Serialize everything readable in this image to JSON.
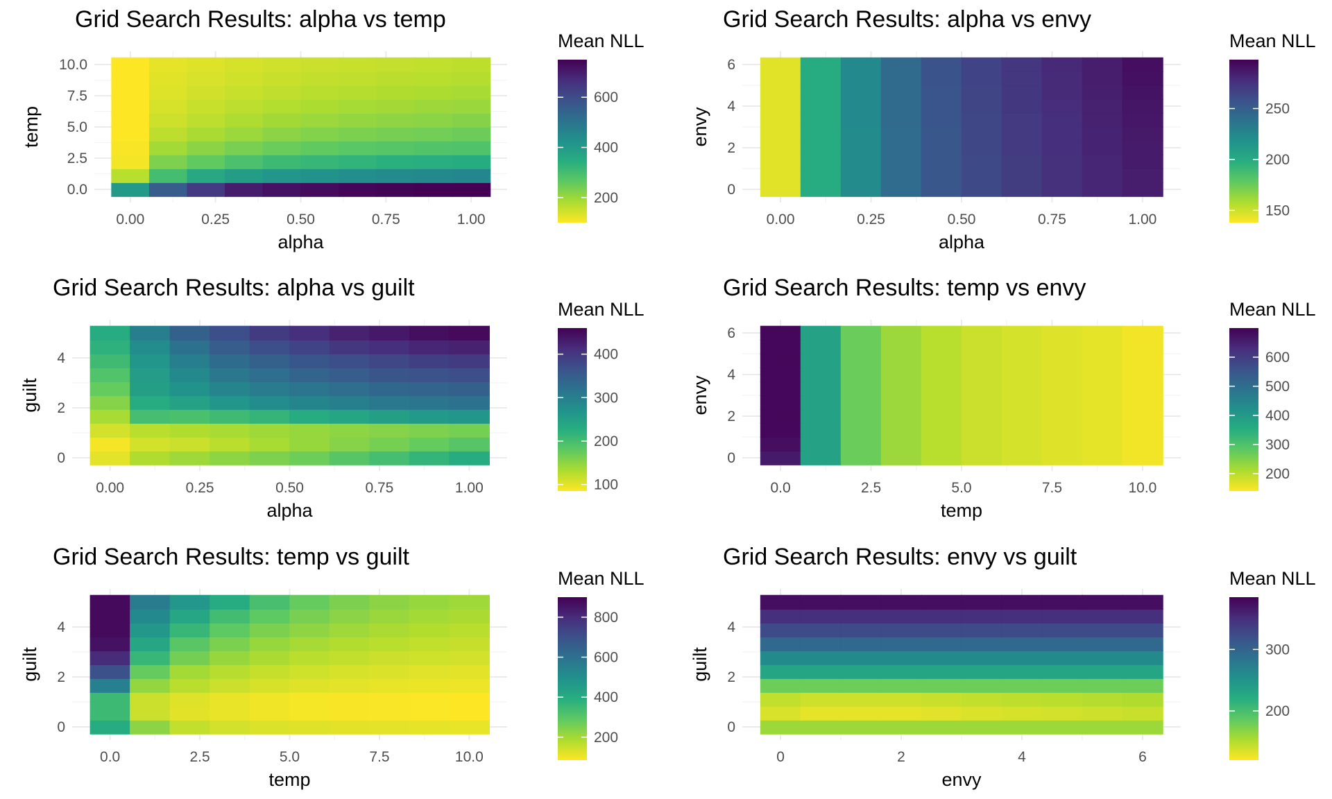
{
  "chart_data": [
    {
      "type": "heatmap",
      "title": "Grid Search Results: alpha vs temp",
      "xlabel": "alpha",
      "ylabel": "temp",
      "xticks": [
        0.0,
        0.25,
        0.5,
        0.75,
        1.0
      ],
      "xtick_labels": [
        "0.00",
        "0.25",
        "0.50",
        "0.75",
        "1.00"
      ],
      "yticks": [
        0.0,
        2.5,
        5.0,
        7.5,
        10.0
      ],
      "ytick_labels": [
        "0.0",
        "2.5",
        "5.0",
        "7.5",
        "10.0"
      ],
      "x": [
        0.0,
        0.1111,
        0.2222,
        0.3333,
        0.4444,
        0.5556,
        0.6667,
        0.7778,
        0.8889,
        1.0
      ],
      "y": [
        0.0,
        1.1111,
        2.2222,
        3.3333,
        4.4444,
        5.5556,
        6.6667,
        7.7778,
        8.8889,
        10.0
      ],
      "z": [
        [
          400,
          560,
          640,
          700,
          720,
          730,
          740,
          745,
          750,
          750
        ],
        [
          170,
          300,
          360,
          390,
          410,
          420,
          430,
          440,
          445,
          450
        ],
        [
          110,
          230,
          260,
          290,
          310,
          320,
          330,
          340,
          345,
          350
        ],
        [
          105,
          190,
          215,
          235,
          250,
          260,
          270,
          275,
          280,
          285
        ],
        [
          100,
          165,
          185,
          200,
          215,
          225,
          232,
          238,
          243,
          248
        ],
        [
          100,
          150,
          165,
          180,
          192,
          200,
          207,
          212,
          217,
          222
        ],
        [
          100,
          140,
          155,
          165,
          175,
          182,
          188,
          193,
          198,
          202
        ],
        [
          100,
          133,
          145,
          155,
          163,
          169,
          174,
          178,
          182,
          186
        ],
        [
          100,
          128,
          138,
          147,
          154,
          159,
          163,
          167,
          170,
          174
        ],
        [
          100,
          124,
          133,
          140,
          146,
          151,
          155,
          158,
          161,
          164
        ]
      ],
      "legend_title": "Mean NLL",
      "legend_ticks": [
        200,
        400,
        600
      ],
      "zlim": [
        100,
        750
      ],
      "colormap": "viridis (reversed: low = yellow, high = dark purple)"
    },
    {
      "type": "heatmap",
      "title": "Grid Search Results: alpha vs envy",
      "xlabel": "alpha",
      "ylabel": "envy",
      "xticks": [
        0.0,
        0.25,
        0.5,
        0.75,
        1.0
      ],
      "xtick_labels": [
        "0.00",
        "0.25",
        "0.50",
        "0.75",
        "1.00"
      ],
      "yticks": [
        0,
        2,
        4,
        6
      ],
      "ytick_labels": [
        "0",
        "2",
        "4",
        "6"
      ],
      "x": [
        0.0,
        0.1111,
        0.2222,
        0.3333,
        0.4444,
        0.5556,
        0.6667,
        0.7778,
        0.8889,
        1.0
      ],
      "y": [
        0.0,
        0.6667,
        1.3333,
        2.0,
        2.6667,
        3.3333,
        4.0,
        4.6667,
        5.3333,
        6.0
      ],
      "z": [
        [
          145,
          200,
          222,
          242,
          255,
          263,
          270,
          276,
          281,
          285
        ],
        [
          145,
          200,
          222,
          242,
          255,
          263,
          270,
          276,
          281,
          285
        ],
        [
          145,
          200,
          222,
          242,
          255,
          263,
          270,
          276,
          281,
          286
        ],
        [
          145,
          200,
          222,
          242,
          255,
          264,
          271,
          277,
          282,
          286
        ],
        [
          145,
          200,
          222,
          242,
          255,
          264,
          271,
          277,
          282,
          287
        ],
        [
          145,
          200,
          223,
          243,
          256,
          264,
          271,
          277,
          283,
          288
        ],
        [
          145,
          200,
          223,
          243,
          256,
          265,
          272,
          278,
          283,
          289
        ],
        [
          145,
          200,
          223,
          243,
          256,
          265,
          272,
          279,
          284,
          290
        ],
        [
          145,
          200,
          223,
          243,
          257,
          266,
          273,
          279,
          285,
          291
        ],
        [
          145,
          200,
          223,
          243,
          257,
          266,
          273,
          280,
          285,
          292
        ]
      ],
      "legend_title": "Mean NLL",
      "legend_ticks": [
        150,
        200,
        250
      ],
      "zlim": [
        138,
        298
      ],
      "colormap": "viridis (reversed: low = yellow, high = dark purple)"
    },
    {
      "type": "heatmap",
      "title": "Grid Search Results: alpha vs guilt",
      "xlabel": "alpha",
      "ylabel": "guilt",
      "xticks": [
        0.0,
        0.25,
        0.5,
        0.75,
        1.0
      ],
      "xtick_labels": [
        "0.00",
        "0.25",
        "0.50",
        "0.75",
        "1.00"
      ],
      "yticks": [
        0,
        2,
        4
      ],
      "ytick_labels": [
        "0",
        "2",
        "4"
      ],
      "x": [
        0.0,
        0.1111,
        0.2222,
        0.3333,
        0.4444,
        0.5556,
        0.6667,
        0.7778,
        0.8889,
        1.0
      ],
      "y": [
        0.0,
        0.5556,
        1.1111,
        1.6667,
        2.2222,
        2.7778,
        3.3333,
        3.8889,
        4.4444,
        5.0
      ],
      "z": [
        [
          100,
          130,
          140,
          150,
          160,
          170,
          185,
          200,
          215,
          230
        ],
        [
          90,
          110,
          115,
          125,
          135,
          145,
          155,
          165,
          175,
          185
        ],
        [
          110,
          125,
          130,
          135,
          140,
          145,
          150,
          155,
          160,
          165
        ],
        [
          135,
          200,
          195,
          205,
          215,
          230,
          240,
          250,
          260,
          265
        ],
        [
          155,
          230,
          245,
          265,
          280,
          290,
          300,
          310,
          315,
          320
        ],
        [
          175,
          250,
          270,
          290,
          305,
          315,
          325,
          335,
          340,
          345
        ],
        [
          190,
          255,
          285,
          310,
          325,
          340,
          350,
          360,
          365,
          370
        ],
        [
          205,
          265,
          300,
          330,
          345,
          360,
          370,
          380,
          390,
          395
        ],
        [
          220,
          280,
          320,
          350,
          370,
          385,
          400,
          410,
          420,
          425
        ],
        [
          230,
          300,
          345,
          370,
          395,
          410,
          425,
          435,
          445,
          450
        ]
      ],
      "legend_title": "Mean NLL",
      "legend_ticks": [
        100,
        200,
        300,
        400
      ],
      "zlim": [
        85,
        460
      ],
      "colormap": "viridis (reversed: low = yellow, high = dark purple)"
    },
    {
      "type": "heatmap",
      "title": "Grid Search Results: temp vs envy",
      "xlabel": "temp",
      "ylabel": "envy",
      "xticks": [
        0.0,
        2.5,
        5.0,
        7.5,
        10.0
      ],
      "xtick_labels": [
        "0.0",
        "2.5",
        "5.0",
        "7.5",
        "10.0"
      ],
      "yticks": [
        0,
        2,
        4,
        6
      ],
      "ytick_labels": [
        "0",
        "2",
        "4",
        "6"
      ],
      "x": [
        0.0,
        1.1111,
        2.2222,
        3.3333,
        4.4444,
        5.5556,
        6.6667,
        7.7778,
        8.8889,
        10.0
      ],
      "y": [
        0.0,
        0.6667,
        1.3333,
        2.0,
        2.6667,
        3.3333,
        4.0,
        4.6667,
        5.3333,
        6.0
      ],
      "z": [
        [
          660,
          380,
          270,
          225,
          200,
          185,
          175,
          167,
          160,
          150
        ],
        [
          680,
          380,
          270,
          225,
          200,
          185,
          175,
          167,
          160,
          150
        ],
        [
          690,
          380,
          270,
          225,
          200,
          185,
          175,
          167,
          160,
          150
        ],
        [
          690,
          380,
          270,
          225,
          200,
          185,
          175,
          167,
          160,
          150
        ],
        [
          690,
          380,
          270,
          225,
          200,
          185,
          175,
          167,
          160,
          150
        ],
        [
          690,
          380,
          270,
          225,
          200,
          185,
          175,
          167,
          160,
          150
        ],
        [
          690,
          380,
          270,
          225,
          200,
          185,
          175,
          167,
          160,
          150
        ],
        [
          690,
          380,
          270,
          225,
          200,
          185,
          175,
          167,
          160,
          150
        ],
        [
          690,
          380,
          270,
          225,
          200,
          185,
          175,
          167,
          160,
          150
        ],
        [
          690,
          380,
          270,
          225,
          200,
          185,
          175,
          167,
          160,
          150
        ]
      ],
      "legend_title": "Mean NLL",
      "legend_ticks": [
        200,
        300,
        400,
        500,
        600
      ],
      "zlim": [
        140,
        700
      ],
      "colormap": "viridis (reversed: low = yellow, high = dark purple)"
    },
    {
      "type": "heatmap",
      "title": "Grid Search Results: temp vs guilt",
      "xlabel": "temp",
      "ylabel": "guilt",
      "xticks": [
        0.0,
        2.5,
        5.0,
        7.5,
        10.0
      ],
      "xtick_labels": [
        "0.0",
        "2.5",
        "5.0",
        "7.5",
        "10.0"
      ],
      "yticks": [
        0,
        2,
        4
      ],
      "ytick_labels": [
        "0",
        "2",
        "4"
      ],
      "x": [
        0.0,
        1.1111,
        2.2222,
        3.3333,
        4.4444,
        5.5556,
        6.6667,
        7.7778,
        8.8889,
        10.0
      ],
      "y": [
        0.0,
        0.5556,
        1.1111,
        1.6667,
        2.2222,
        2.7778,
        3.3333,
        3.8889,
        4.4444,
        5.0
      ],
      "z": [
        [
          400,
          230,
          160,
          140,
          130,
          125,
          120,
          118,
          115,
          112
        ],
        [
          350,
          150,
          120,
          110,
          100,
          95,
          92,
          90,
          88,
          85
        ],
        [
          350,
          150,
          125,
          110,
          100,
          95,
          92,
          90,
          88,
          85
        ],
        [
          550,
          220,
          170,
          150,
          135,
          125,
          118,
          112,
          108,
          105
        ],
        [
          700,
          280,
          200,
          175,
          155,
          145,
          135,
          128,
          122,
          118
        ],
        [
          800,
          360,
          260,
          215,
          190,
          170,
          160,
          150,
          145,
          140
        ],
        [
          860,
          420,
          300,
          250,
          215,
          195,
          180,
          170,
          162,
          155
        ],
        [
          880,
          470,
          360,
          290,
          250,
          225,
          205,
          190,
          180,
          172
        ],
        [
          880,
          520,
          420,
          340,
          290,
          255,
          230,
          212,
          200,
          190
        ],
        [
          880,
          560,
          470,
          400,
          330,
          280,
          250,
          230,
          215,
          205
        ]
      ],
      "legend_title": "Mean NLL",
      "legend_ticks": [
        200,
        400,
        600,
        800
      ],
      "zlim": [
        85,
        900
      ],
      "colormap": "viridis (reversed: low = yellow, high = dark purple)"
    },
    {
      "type": "heatmap",
      "title": "Grid Search Results: envy vs guilt",
      "xlabel": "envy",
      "ylabel": "guilt",
      "xticks": [
        0,
        2,
        4,
        6
      ],
      "xtick_labels": [
        "0",
        "2",
        "4",
        "6"
      ],
      "yticks": [
        0,
        2,
        4
      ],
      "ytick_labels": [
        "0",
        "2",
        "4"
      ],
      "x": [
        0.0,
        0.6667,
        1.3333,
        2.0,
        2.6667,
        3.3333,
        4.0,
        4.6667,
        5.3333,
        6.0
      ],
      "y": [
        0.0,
        0.5556,
        1.1111,
        1.6667,
        2.2222,
        2.7778,
        3.3333,
        3.8889,
        4.4444,
        5.0
      ],
      "z": [
        [
          160,
          160,
          160,
          160,
          160,
          160,
          160,
          160,
          160,
          160
        ],
        [
          135,
          130,
          130,
          130,
          132,
          134,
          136,
          138,
          140,
          142
        ],
        [
          145,
          140,
          140,
          140,
          142,
          144,
          146,
          148,
          150,
          152
        ],
        [
          180,
          180,
          180,
          180,
          180,
          180,
          180,
          180,
          180,
          180
        ],
        [
          230,
          230,
          230,
          230,
          230,
          230,
          230,
          230,
          230,
          230
        ],
        [
          260,
          260,
          260,
          260,
          260,
          260,
          260,
          260,
          260,
          260
        ],
        [
          295,
          295,
          295,
          295,
          295,
          295,
          295,
          295,
          295,
          295
        ],
        [
          325,
          325,
          325,
          325,
          325,
          325,
          325,
          325,
          325,
          325
        ],
        [
          350,
          350,
          350,
          350,
          350,
          350,
          350,
          350,
          350,
          350
        ],
        [
          375,
          375,
          375,
          375,
          375,
          375,
          375,
          375,
          375,
          375
        ]
      ],
      "legend_title": "Mean NLL",
      "legend_ticks": [
        200,
        300
      ],
      "zlim": [
        120,
        385
      ],
      "colormap": "viridis (reversed: low = yellow, high = dark purple)"
    }
  ]
}
